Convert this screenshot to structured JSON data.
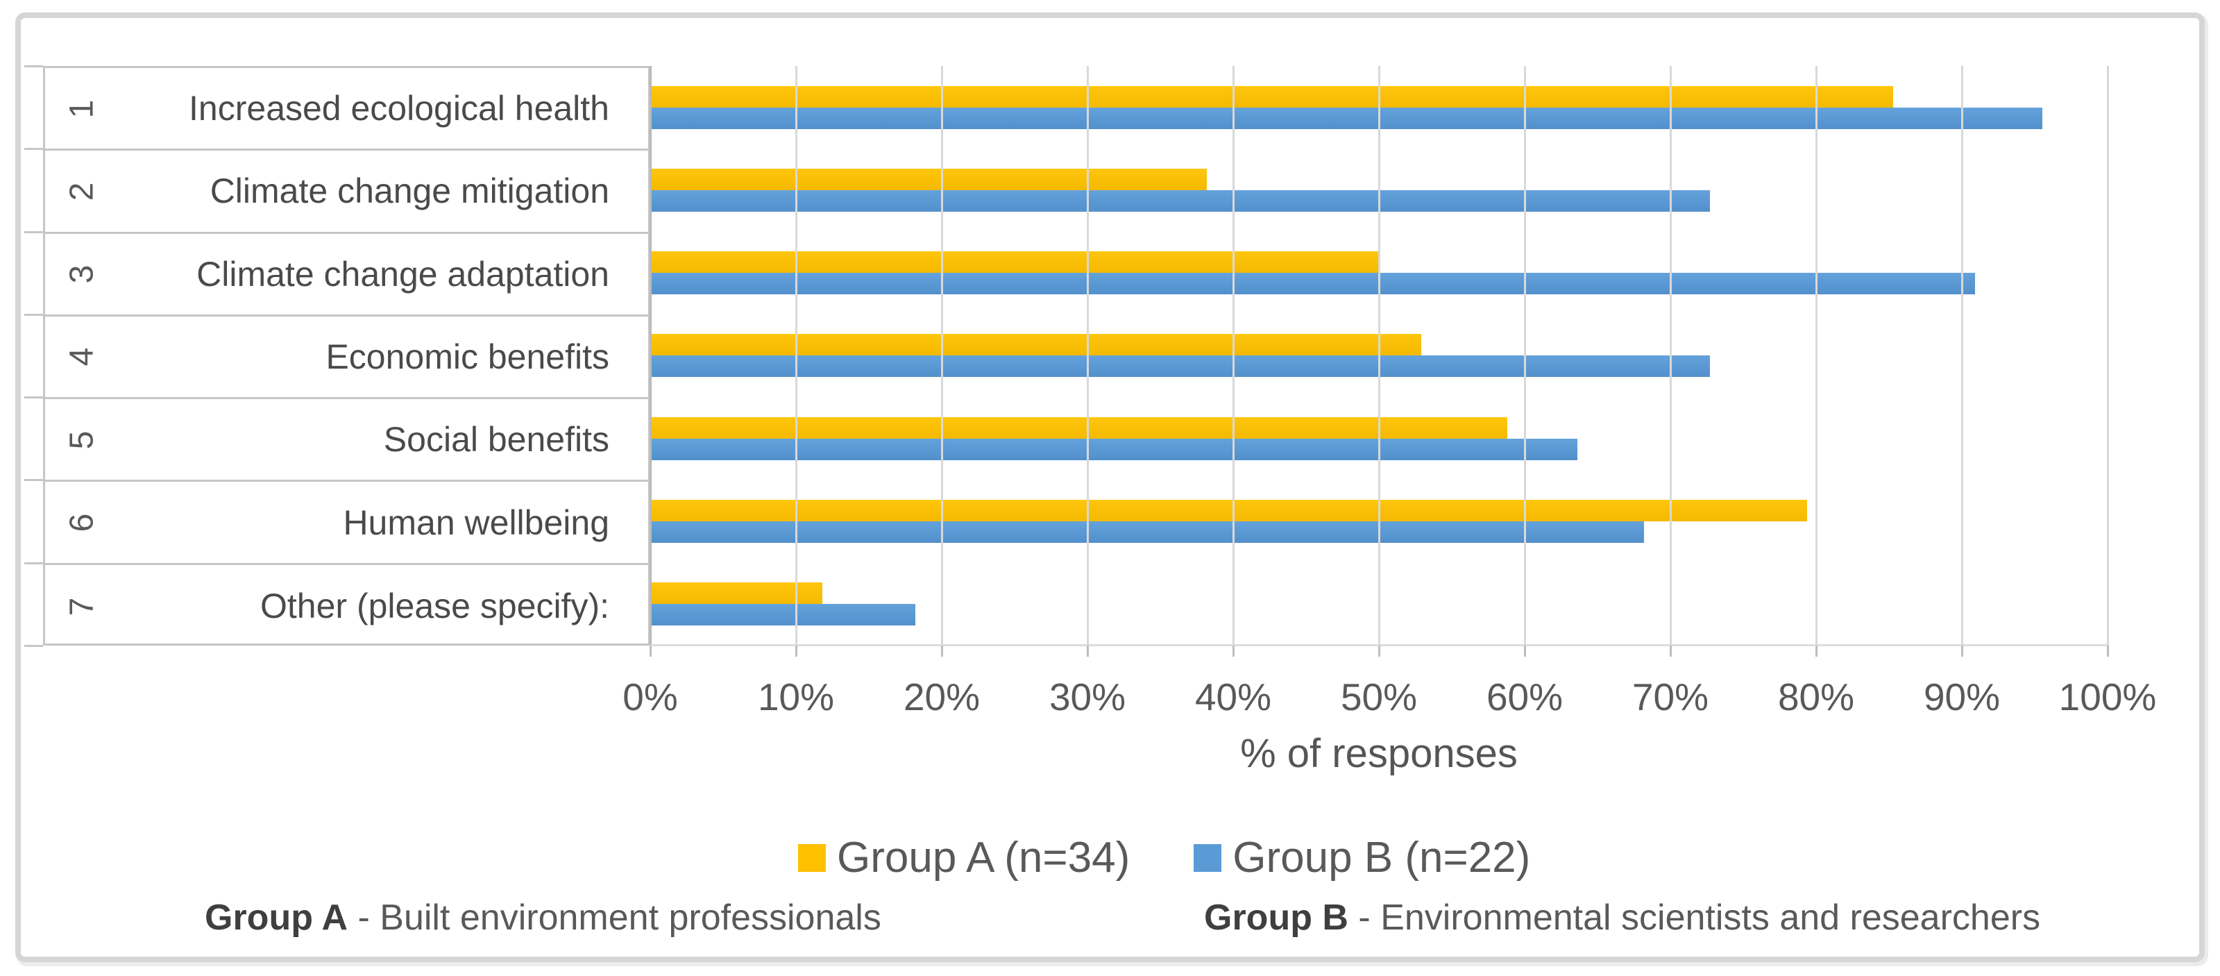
{
  "chart_data": {
    "type": "bar",
    "orientation": "horizontal",
    "xlabel": "% of responses",
    "xlim": [
      0,
      100
    ],
    "x_ticks": [
      "0%",
      "10%",
      "20%",
      "30%",
      "40%",
      "50%",
      "60%",
      "70%",
      "80%",
      "90%",
      "100%"
    ],
    "grid": true,
    "legend_position": "bottom",
    "row_numbers": [
      "1",
      "2",
      "3",
      "4",
      "5",
      "6",
      "7"
    ],
    "categories": [
      "Increased ecological health",
      "Climate change mitigation",
      "Climate change adaptation",
      "Economic benefits",
      "Social benefits",
      "Human wellbeing",
      "Other (please specify):"
    ],
    "series": [
      {
        "name": "Group A (n=34)",
        "color": "#FFC000",
        "values": [
          85.3,
          38.2,
          50.0,
          52.9,
          58.8,
          79.4,
          11.8
        ]
      },
      {
        "name": "Group B (n=22)",
        "color": "#5B9BD5",
        "values": [
          95.5,
          72.7,
          90.9,
          72.7,
          63.6,
          68.2,
          18.2
        ]
      }
    ]
  },
  "footnotes": [
    {
      "bold": "Group A",
      "rest": " - Built environment professionals"
    },
    {
      "bold": "Group B",
      "rest": " - Environmental scientists and researchers"
    }
  ],
  "colors": {
    "group_a": "#FFC000",
    "group_b": "#5B9BD5",
    "text": "#595959",
    "grid": "#D9D9D9",
    "axis": "#BFBFBF",
    "table_border": "#C6C6C6"
  }
}
